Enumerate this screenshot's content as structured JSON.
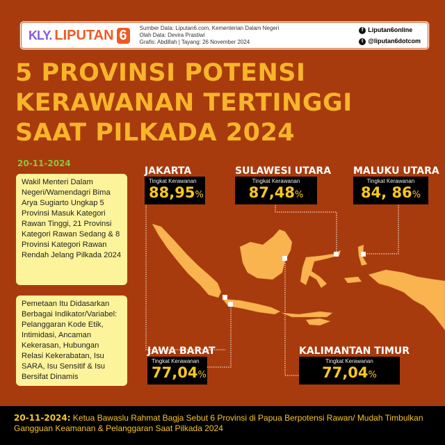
{
  "header": {
    "logo": {
      "kly": "KLY.",
      "brand": "LIPUTAN",
      "six": "6"
    },
    "credits": [
      "Sumber Data: Liputan6.com, Kementerian Dalam Negeri",
      "Olah Data: Devira Prastiwi",
      "Grafis: Abdillah | Tayang: 26 November 2024"
    ],
    "social": [
      {
        "icon": "facebook-icon",
        "handle": "Liputan6online"
      },
      {
        "icon": "twitter-icon",
        "handle": "@liputan6dotcom"
      }
    ]
  },
  "title": [
    "5 PROVINSI POTENSI",
    "KERAWANAN TERTINGGI",
    "SAAT PILKADA 2024"
  ],
  "date": "20-11-2024",
  "notes": [
    "Wakil Menteri Dalam Negeri/Wamendagri Bima Arya Sugiarto Ungkap 5 Provinsi Masuk Kategori Rawan Tinggi, 21 Provinsi Kategori Rawan Sedang & 8 Provinsi Kategori Rawan Rendah Jelang Pilkada 2024",
    "Pemetaan Itu Didasarkan Berbagai Indikator/Variabel: Pelanggaran Kode Etik, Intimidasi, Ancaman Kekerasan, Hubungan Relasi Kekerabatan, Isu SARA, Isu Sensitif & Isu Bersifat Dinamis"
  ],
  "provinces": [
    {
      "name": "JAKARTA",
      "label": "Tingkat Kerawanan",
      "value": "88,95",
      "unit": "%"
    },
    {
      "name": "SULAWESI UTARA",
      "label": "Tingkat Kerawanan",
      "value": "87,48",
      "unit": "%"
    },
    {
      "name": "MALUKU UTARA",
      "label": "Tingkat Kerawanan",
      "value": "84, 86",
      "unit": "%"
    },
    {
      "name": "JAWA BARAT",
      "label": "Tingkat Kerawanan",
      "value": "77,04",
      "unit": "%"
    },
    {
      "name": "KALIMANTAN TIMUR",
      "label": "Tingkat Kerawanan",
      "value": "77,04",
      "unit": "%"
    }
  ],
  "bottom": {
    "date": "20-11-2024:",
    "text": "Ketua Bawaslu Rahmat Bagja Sebut 6 Provinsi di Papua Berpotensi Rawan/ Mudah Timbulkan Gangguan Keamanan & Pelanggaran Saat Pilkada 2024"
  },
  "colors": {
    "background": "#a83b0d",
    "title": "#f7b52a",
    "date": "#8bc53f",
    "note_bg": "#fdf39a",
    "map": "#f9b34f",
    "value": "#f7c623"
  }
}
